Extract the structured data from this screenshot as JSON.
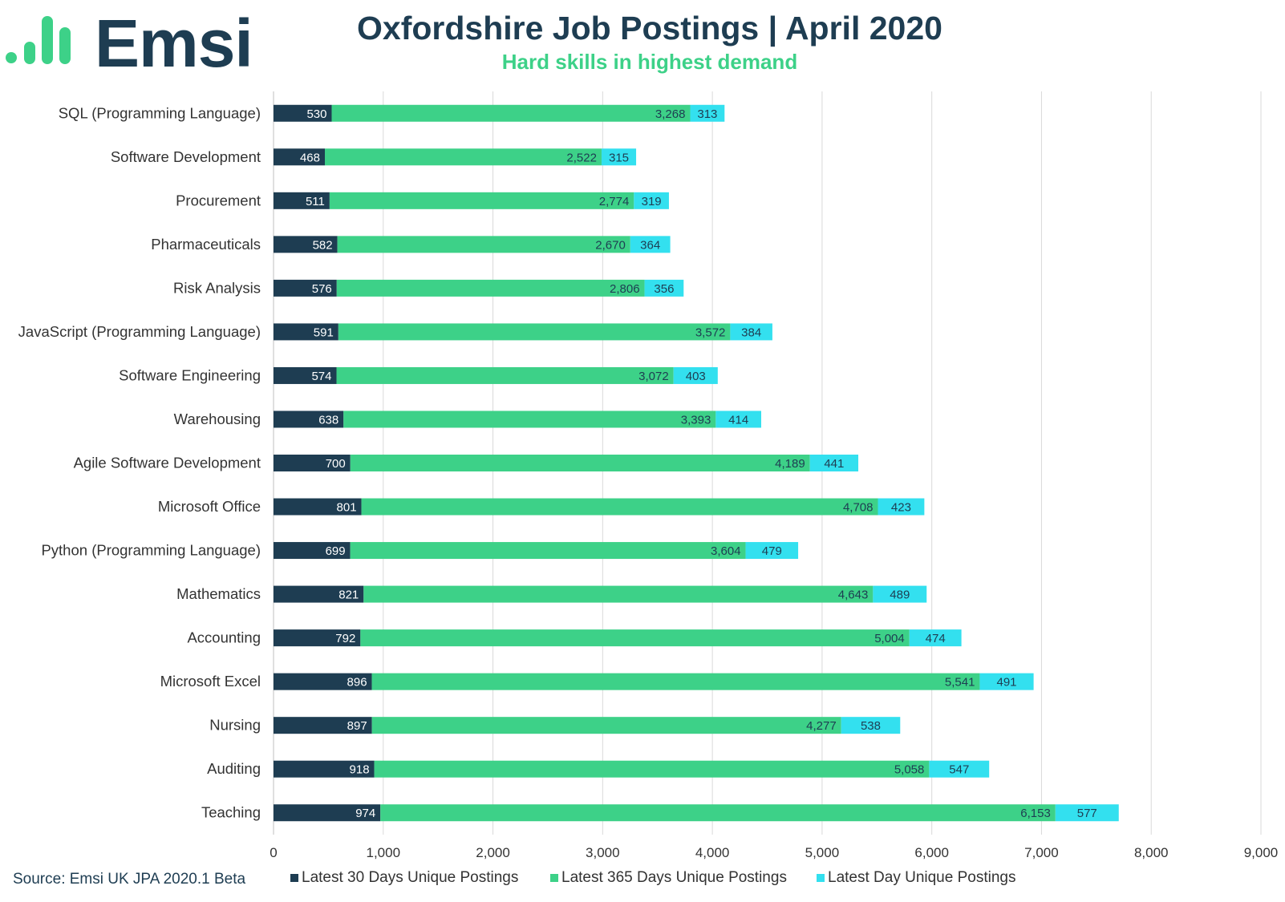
{
  "header": {
    "logo_text": "Emsi",
    "title": "Oxfordshire Job Postings | April 2020",
    "subtitle": "Hard skills in highest demand"
  },
  "footer": {
    "source": "Source: Emsi UK JPA 2020.1 Beta"
  },
  "colors": {
    "dark": "#1e3d52",
    "green": "#3dd188",
    "cyan": "#33e0ef",
    "logo_green": "#3dd188"
  },
  "chart_data": {
    "type": "bar",
    "orientation": "horizontal",
    "stacked": true,
    "title": "Oxfordshire Job Postings | April 2020",
    "subtitle": "Hard skills in highest demand",
    "xlim": [
      0,
      9000
    ],
    "x_ticks": [
      "0",
      "1,000",
      "2,000",
      "3,000",
      "4,000",
      "5,000",
      "6,000",
      "7,000",
      "8,000",
      "9,000"
    ],
    "x_tick_values": [
      0,
      1000,
      2000,
      3000,
      4000,
      5000,
      6000,
      7000,
      8000,
      9000
    ],
    "grid": true,
    "legend_position": "bottom",
    "categories": [
      "SQL (Programming Language)",
      "Software Development",
      "Procurement",
      "Pharmaceuticals",
      "Risk Analysis",
      "JavaScript (Programming Language)",
      "Software Engineering",
      "Warehousing",
      "Agile Software Development",
      "Microsoft Office",
      "Python (Programming Language)",
      "Mathematics",
      "Accounting",
      "Microsoft Excel",
      "Nursing",
      "Auditing",
      "Teaching"
    ],
    "series": [
      {
        "name": "Latest 30 Days Unique Postings",
        "color": "#1e3d52",
        "values": [
          530,
          468,
          511,
          582,
          576,
          591,
          574,
          638,
          700,
          801,
          699,
          821,
          792,
          896,
          897,
          918,
          974
        ],
        "labels": [
          "530",
          "468",
          "511",
          "582",
          "576",
          "591",
          "574",
          "638",
          "700",
          "801",
          "699",
          "821",
          "792",
          "896",
          "897",
          "918",
          "974"
        ]
      },
      {
        "name": "Latest 365 Days Unique Postings",
        "color": "#3dd188",
        "values": [
          3268,
          2522,
          2774,
          2670,
          2806,
          3572,
          3072,
          3393,
          4189,
          4708,
          3604,
          4643,
          5004,
          5541,
          4277,
          5058,
          6153
        ],
        "labels": [
          "3,268",
          "2,522",
          "2,774",
          "2,670",
          "2,806",
          "3,572",
          "3,072",
          "3,393",
          "4,189",
          "4,708",
          "3,604",
          "4,643",
          "5,004",
          "5,541",
          "4,277",
          "5,058",
          "6,153"
        ]
      },
      {
        "name": "Latest Day Unique Postings",
        "color": "#33e0ef",
        "values": [
          313,
          315,
          319,
          364,
          356,
          384,
          403,
          414,
          441,
          423,
          479,
          489,
          474,
          491,
          538,
          547,
          577
        ],
        "labels": [
          "313",
          "315",
          "319",
          "364",
          "356",
          "384",
          "403",
          "414",
          "441",
          "423",
          "479",
          "489",
          "474",
          "491",
          "538",
          "547",
          "577"
        ]
      }
    ]
  }
}
